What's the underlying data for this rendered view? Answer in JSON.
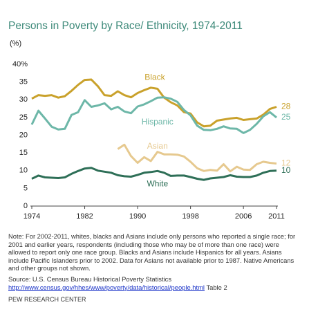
{
  "chart_data": {
    "type": "line",
    "title": "Persons in Poverty by Race/ Ethnicity, 1974-2011",
    "y_unit": "(%)",
    "x": [
      1974,
      1975,
      1976,
      1977,
      1978,
      1979,
      1980,
      1981,
      1982,
      1983,
      1984,
      1985,
      1986,
      1987,
      1988,
      1989,
      1990,
      1991,
      1992,
      1993,
      1994,
      1995,
      1996,
      1997,
      1998,
      1999,
      2000,
      2001,
      2002,
      2003,
      2004,
      2005,
      2006,
      2007,
      2008,
      2009,
      2010,
      2011
    ],
    "xlim": [
      1974,
      2011
    ],
    "xticks": [
      1974,
      1982,
      1990,
      1998,
      2006,
      2011
    ],
    "ylim": [
      0,
      40
    ],
    "yticks": [
      0,
      5,
      10,
      15,
      20,
      25,
      30,
      35,
      {
        "value": 40,
        "label": "40%"
      }
    ],
    "grid": false,
    "series": [
      {
        "name": "Black",
        "color": "#c9a12b",
        "values": [
          30.3,
          31.3,
          31.1,
          31.3,
          30.6,
          31.0,
          32.5,
          34.2,
          35.6,
          35.7,
          33.8,
          31.3,
          31.1,
          32.4,
          31.3,
          30.7,
          31.9,
          32.7,
          33.4,
          33.1,
          30.6,
          29.3,
          28.4,
          26.5,
          26.1,
          23.6,
          22.5,
          22.7,
          24.1,
          24.4,
          24.7,
          24.9,
          24.3,
          24.5,
          24.7,
          25.8,
          27.4,
          28
        ]
      },
      {
        "name": "Hispanic",
        "color": "#6db7a8",
        "values": [
          23.0,
          26.9,
          24.7,
          22.4,
          21.6,
          21.8,
          25.7,
          26.5,
          29.9,
          28.0,
          28.4,
          29.0,
          27.3,
          28.0,
          26.7,
          26.2,
          28.1,
          28.7,
          29.6,
          30.6,
          30.7,
          30.3,
          29.4,
          27.1,
          25.6,
          22.7,
          21.5,
          21.4,
          21.8,
          22.5,
          21.9,
          21.8,
          20.6,
          21.5,
          23.2,
          25.3,
          26.5,
          25
        ]
      },
      {
        "name": "Asian",
        "color": "#e6c98f",
        "values": [
          null,
          null,
          null,
          null,
          null,
          null,
          null,
          null,
          null,
          null,
          null,
          null,
          null,
          16.1,
          17.3,
          14.1,
          12.2,
          13.8,
          12.7,
          15.3,
          14.6,
          14.6,
          14.5,
          14.0,
          12.5,
          10.7,
          9.9,
          10.2,
          10.0,
          11.8,
          9.8,
          11.1,
          10.3,
          10.2,
          11.8,
          12.5,
          12.2,
          12
        ]
      },
      {
        "name": "White",
        "color": "#2e6f57",
        "values": [
          7.7,
          8.6,
          8.1,
          8.0,
          7.9,
          8.1,
          9.1,
          9.9,
          10.6,
          10.8,
          10.0,
          9.7,
          9.4,
          8.7,
          8.4,
          8.3,
          8.8,
          9.4,
          9.6,
          9.9,
          9.4,
          8.5,
          8.6,
          8.6,
          8.2,
          7.7,
          7.4,
          7.8,
          8.0,
          8.2,
          8.7,
          8.3,
          8.2,
          8.2,
          8.6,
          9.4,
          9.9,
          10
        ]
      }
    ],
    "note": "Note: For 2002-2011, whites, blacks and Asians include only persons who reported a single race; for 2001 and earlier years, respondents (including those who may be of more than one race) were allowed to report only one race group. Blacks and Asians include Hispanics for all years. Asians include Pacific Islanders prior to 2002. Data for Asians not available prior to 1987. Native Americans and other groups not shown.",
    "source": "Source: U.S. Census Bureau Historical Poverty Statistics",
    "source_url": "http://www.census.gov/hhes/www/poverty/data/historical/people.html",
    "source_table": "Table 2",
    "credit": "PEW RESEARCH CENTER"
  }
}
